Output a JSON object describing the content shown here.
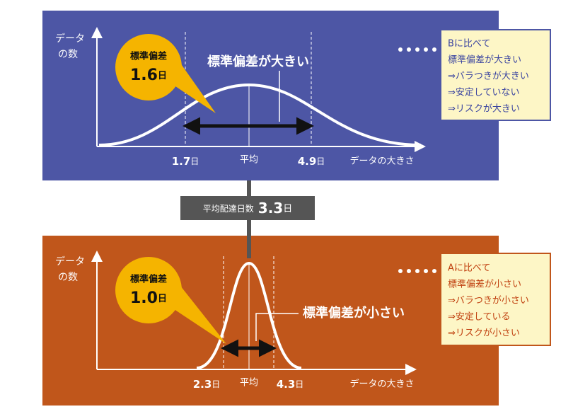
{
  "top_panel": {
    "y_axis_label": [
      "データ",
      "の数"
    ],
    "badge": {
      "title": "標準偏差",
      "value": "1.6",
      "unit": "日"
    },
    "callout": "標準偏差が大きい",
    "left_mark": {
      "value": "1.7",
      "unit": "日"
    },
    "mean_label": "平均",
    "right_mark": {
      "value": "4.9",
      "unit": "日"
    },
    "x_axis_label": "データの大きさ",
    "note": [
      "Bに比べて",
      "標準偏差が大きい",
      "⇒バラつきが大きい",
      "⇒安定していない",
      "⇒リスクが大きい"
    ]
  },
  "center": {
    "label": "平均配達日数",
    "value": "3.3",
    "unit": "日"
  },
  "bottom_panel": {
    "y_axis_label": [
      "データ",
      "の数"
    ],
    "badge": {
      "title": "標準偏差",
      "value": "1.0",
      "unit": "日"
    },
    "callout": "標準偏差が小さい",
    "left_mark": {
      "value": "2.3",
      "unit": "日"
    },
    "mean_label": "平均",
    "right_mark": {
      "value": "4.3",
      "unit": "日"
    },
    "x_axis_label": "データの大きさ",
    "note": [
      "Aに比べて",
      "標準偏差が小さい",
      "⇒バラつきが小さい",
      "⇒安定している",
      "⇒リスクが小さい"
    ]
  }
}
